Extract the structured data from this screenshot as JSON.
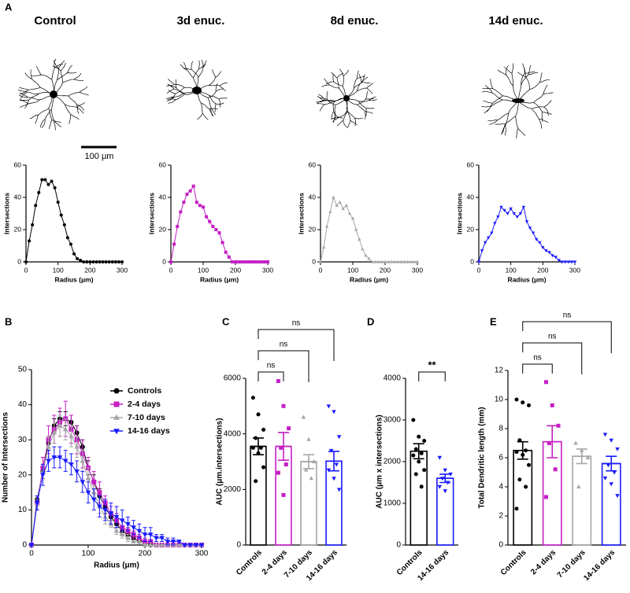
{
  "panel_labels": [
    "A",
    "B",
    "C",
    "D",
    "E"
  ],
  "scale_bar": "100 μm",
  "chart_data": [
    {
      "type": "line",
      "title": "Control",
      "xlabel": "Radius (μm)",
      "ylabel": "Intersections",
      "xlim": [
        0,
        300
      ],
      "ylim": [
        0,
        60
      ],
      "xticks": [
        0,
        100,
        200,
        300
      ],
      "yticks": [
        0,
        20,
        40,
        60
      ],
      "x": [
        0,
        10,
        20,
        30,
        40,
        50,
        60,
        70,
        80,
        90,
        100,
        110,
        120,
        130,
        140,
        150,
        160,
        170,
        180,
        190,
        200,
        210,
        220,
        230,
        240,
        250,
        260,
        270,
        280,
        290,
        300
      ],
      "series": [
        {
          "color": "#000000",
          "marker": "circle",
          "values": [
            0,
            13,
            23,
            35,
            43,
            51,
            51,
            48,
            50,
            46,
            37,
            29,
            23,
            15,
            11,
            5,
            2,
            1,
            0,
            0,
            0,
            0,
            0,
            0,
            0,
            0,
            0,
            0,
            0,
            0,
            0
          ]
        }
      ]
    },
    {
      "type": "line",
      "title": "3d enuc.",
      "xlabel": "Radius (μm)",
      "ylabel": "Intersections",
      "xlim": [
        0,
        300
      ],
      "ylim": [
        0,
        60
      ],
      "xticks": [
        0,
        100,
        200,
        300
      ],
      "yticks": [
        0,
        20,
        40,
        60
      ],
      "x": [
        0,
        10,
        20,
        30,
        40,
        50,
        60,
        70,
        80,
        90,
        100,
        110,
        120,
        130,
        140,
        150,
        160,
        170,
        180,
        190,
        200,
        210,
        220,
        230,
        240,
        250,
        260,
        270,
        280,
        290,
        300
      ],
      "series": [
        {
          "color": "#c41fc4",
          "marker": "square",
          "values": [
            0,
            11,
            22,
            31,
            37,
            42,
            44,
            47,
            37,
            35,
            34,
            28,
            25,
            22,
            20,
            18,
            12,
            6,
            3,
            0,
            0,
            0,
            0,
            0,
            0,
            0,
            0,
            0,
            0,
            0,
            0
          ]
        }
      ]
    },
    {
      "type": "line",
      "title": "8d enuc.",
      "xlabel": "Radius (μm)",
      "ylabel": "Intersections",
      "xlim": [
        0,
        300
      ],
      "ylim": [
        0,
        60
      ],
      "xticks": [
        0,
        100,
        200,
        300
      ],
      "yticks": [
        0,
        20,
        40,
        60
      ],
      "x": [
        0,
        10,
        20,
        30,
        40,
        50,
        60,
        70,
        80,
        90,
        100,
        110,
        120,
        130,
        140,
        150,
        160,
        170,
        180,
        190,
        200,
        210,
        220,
        230,
        240,
        250,
        260,
        270,
        280,
        290,
        300
      ],
      "series": [
        {
          "color": "#a6a6a6",
          "marker": "triangle",
          "values": [
            0,
            9,
            22,
            31,
            40,
            35,
            37,
            33,
            35,
            30,
            27,
            20,
            14,
            8,
            4,
            2,
            0,
            0,
            0,
            0,
            0,
            0,
            0,
            0,
            0,
            0,
            0,
            0,
            0,
            0,
            0
          ]
        }
      ]
    },
    {
      "type": "line",
      "title": "14d enuc.",
      "xlabel": "Radius (μm)",
      "ylabel": "Intersections",
      "xlim": [
        0,
        300
      ],
      "ylim": [
        0,
        60
      ],
      "xticks": [
        0,
        100,
        200,
        300
      ],
      "yticks": [
        0,
        20,
        40,
        60
      ],
      "x": [
        0,
        10,
        20,
        30,
        40,
        50,
        60,
        70,
        80,
        90,
        100,
        110,
        120,
        130,
        140,
        150,
        160,
        170,
        180,
        190,
        200,
        210,
        220,
        230,
        240,
        250,
        260,
        270,
        280,
        290,
        300
      ],
      "series": [
        {
          "color": "#1a1aff",
          "marker": "triangle-down",
          "values": [
            0,
            7,
            12,
            15,
            18,
            24,
            28,
            34,
            32,
            30,
            33,
            30,
            28,
            30,
            34,
            25,
            21,
            18,
            14,
            12,
            9,
            7,
            6,
            4,
            3,
            1,
            0,
            0,
            0,
            0,
            0
          ]
        }
      ]
    },
    {
      "type": "line",
      "xlabel": "Radius (μm)",
      "ylabel": "Number of  Intersections",
      "xlim": [
        0,
        300
      ],
      "ylim": [
        0,
        50
      ],
      "xticks": [
        0,
        100,
        200,
        300
      ],
      "yticks": [
        0,
        10,
        20,
        30,
        40,
        50
      ],
      "x": [
        0,
        10,
        20,
        30,
        40,
        50,
        60,
        70,
        80,
        90,
        100,
        110,
        120,
        130,
        140,
        150,
        160,
        170,
        180,
        190,
        200,
        210,
        220,
        230,
        240,
        250,
        260,
        270,
        280,
        290,
        300
      ],
      "series": [
        {
          "name": "Controls",
          "color": "#000000",
          "marker": "circle",
          "values": [
            0,
            13,
            21,
            29,
            34,
            36,
            36,
            35,
            32,
            28,
            22,
            18,
            14,
            11,
            8,
            6,
            4,
            3,
            2,
            1,
            1,
            0,
            0,
            0,
            0,
            0,
            0,
            0,
            0,
            0,
            0
          ],
          "errors": [
            0,
            1,
            2,
            2,
            2,
            2,
            2,
            2,
            2,
            2,
            2,
            2,
            2,
            2,
            1,
            1,
            1,
            1,
            1,
            0,
            0,
            0,
            0,
            0,
            0,
            0,
            0,
            0,
            0,
            0,
            0
          ]
        },
        {
          "name": "2-4 days",
          "color": "#c41fc4",
          "marker": "square",
          "values": [
            0,
            12,
            22,
            30,
            33,
            35,
            36,
            33,
            30,
            26,
            22,
            18,
            15,
            12,
            9,
            7,
            5,
            4,
            3,
            2,
            1,
            1,
            0,
            0,
            0,
            0,
            0,
            0,
            0,
            0,
            0
          ],
          "errors": [
            0,
            2,
            3,
            4,
            4,
            4,
            5,
            4,
            4,
            4,
            3,
            3,
            3,
            2,
            2,
            2,
            2,
            1,
            1,
            1,
            1,
            0,
            0,
            0,
            0,
            0,
            0,
            0,
            0,
            0,
            0
          ]
        },
        {
          "name": "7-10 days",
          "color": "#a6a6a6",
          "marker": "triangle",
          "values": [
            0,
            12,
            21,
            28,
            32,
            34,
            33,
            31,
            28,
            24,
            19,
            15,
            11,
            8,
            6,
            4,
            3,
            2,
            1,
            1,
            0,
            0,
            0,
            0,
            0,
            0,
            0,
            0,
            0,
            0,
            0
          ],
          "errors": [
            0,
            1,
            2,
            3,
            3,
            3,
            3,
            3,
            3,
            3,
            3,
            2,
            2,
            2,
            1,
            1,
            1,
            1,
            0,
            0,
            0,
            0,
            0,
            0,
            0,
            0,
            0,
            0,
            0,
            0,
            0
          ]
        },
        {
          "name": "14-16 days",
          "color": "#1a1aff",
          "marker": "triangle-down",
          "values": [
            0,
            12,
            20,
            24,
            25,
            25,
            24,
            23,
            21,
            18,
            15,
            13,
            11,
            10,
            9,
            8,
            7,
            6,
            5,
            4,
            3,
            3,
            2,
            2,
            1,
            1,
            1,
            0,
            0,
            0,
            0
          ],
          "errors": [
            0,
            2,
            3,
            3,
            3,
            3,
            3,
            3,
            3,
            3,
            3,
            3,
            3,
            3,
            3,
            3,
            3,
            2,
            2,
            2,
            2,
            2,
            1,
            1,
            1,
            1,
            0,
            0,
            0,
            0,
            0
          ]
        }
      ]
    },
    {
      "type": "bar",
      "ylabel": "AUC (μm.intersections)",
      "ylim": [
        0,
        6000
      ],
      "yticks": [
        0,
        2000,
        4000,
        6000
      ],
      "categories": [
        "Controls",
        "2-4 days",
        "7-10 days",
        "14-16 days"
      ],
      "colors": [
        "#000000",
        "#c41fc4",
        "#a6a6a6",
        "#1a1aff"
      ],
      "markers": [
        "circle",
        "square",
        "triangle",
        "triangle-down"
      ],
      "values": [
        3550,
        3550,
        3000,
        3020
      ],
      "errors": [
        300,
        500,
        250,
        350
      ],
      "points": [
        [
          5300,
          4700,
          4150,
          3850,
          3500,
          3500,
          3300,
          2800,
          2300
        ],
        [
          5900,
          5000,
          4200,
          3500,
          2900,
          2600,
          1800
        ],
        [
          4600,
          3800,
          3000,
          2700,
          2400
        ],
        [
          5000,
          4800,
          3900,
          3400,
          2900,
          2700,
          2400,
          2000
        ]
      ],
      "annotations": [
        {
          "from": 0,
          "to": 1,
          "text": "ns"
        },
        {
          "from": 0,
          "to": 2,
          "text": "ns"
        },
        {
          "from": 0,
          "to": 3,
          "text": "ns"
        }
      ]
    },
    {
      "type": "bar",
      "ylabel": "AUC (μm x intersections)",
      "ylim": [
        0,
        4000
      ],
      "yticks": [
        0,
        1000,
        2000,
        3000,
        4000
      ],
      "categories": [
        "Controls",
        "14-16 days"
      ],
      "colors": [
        "#000000",
        "#1a1aff"
      ],
      "markers": [
        "circle",
        "triangle-down"
      ],
      "values": [
        2250,
        1600
      ],
      "errors": [
        180,
        100
      ],
      "points": [
        [
          3000,
          2600,
          2500,
          2300,
          2200,
          2150,
          2000,
          1800,
          1700,
          1400
        ],
        [
          2100,
          1800,
          1700,
          1600,
          1500,
          1400,
          1300
        ]
      ],
      "annotations": [
        {
          "from": 0,
          "to": 1,
          "text": "**"
        }
      ]
    },
    {
      "type": "bar",
      "ylabel": "Total Dendritic length (mm)",
      "ylim": [
        0,
        12
      ],
      "yticks": [
        0,
        2,
        4,
        6,
        8,
        10,
        12
      ],
      "categories": [
        "Controls",
        "2-4 days",
        "7-10 days",
        "14-16 days"
      ],
      "colors": [
        "#000000",
        "#c41fc4",
        "#a6a6a6",
        "#1a1aff"
      ],
      "markers": [
        "circle",
        "square",
        "triangle",
        "triangle-down"
      ],
      "values": [
        6.5,
        7.1,
        6.1,
        5.6
      ],
      "errors": [
        0.6,
        1.1,
        0.5,
        0.5
      ],
      "points": [
        [
          10,
          9.8,
          9.6,
          7.2,
          6.5,
          6.4,
          6.2,
          5.5,
          4.5,
          4,
          2.5
        ],
        [
          11.2,
          9.6,
          8.2,
          7,
          5.2,
          3.3
        ],
        [
          7,
          6.5,
          6,
          4
        ],
        [
          7.6,
          7.2,
          6.6,
          5.5,
          5,
          4.6,
          4.2,
          3.4
        ]
      ],
      "annotations": [
        {
          "from": 0,
          "to": 1,
          "text": "ns"
        },
        {
          "from": 0,
          "to": 2,
          "text": "ns"
        },
        {
          "from": 0,
          "to": 3,
          "text": "ns"
        }
      ]
    }
  ]
}
